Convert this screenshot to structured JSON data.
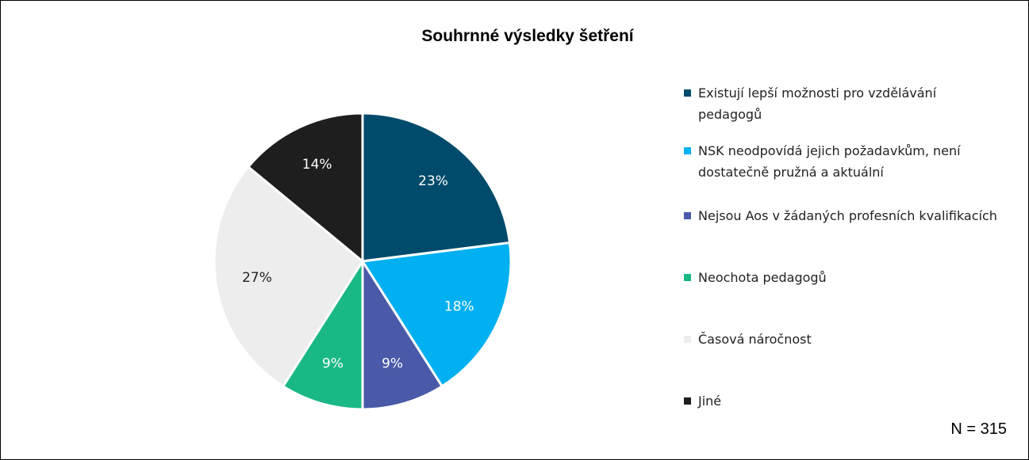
{
  "chart_data": {
    "type": "pie",
    "title": "Souhrnné výsledky šetření",
    "categories": [
      "Existují lepší možnosti pro vzdělávání pedagogů",
      "NSK neodpovídá jejich požadavkům, není dostatečně pružná a aktuální",
      "Nejsou Aos v žádaných profesních kvalifikacích",
      "Neochota pedagogů",
      "Časová náročnost",
      "Jiné"
    ],
    "values": [
      23,
      18,
      9,
      9,
      27,
      14
    ],
    "value_labels": [
      "23%",
      "18%",
      "9%",
      "9%",
      "27%",
      "14%"
    ],
    "colors": [
      "#004b6b",
      "#00b0f0",
      "#4a5aa8",
      "#19b886",
      "#ededed",
      "#1e1e1e"
    ],
    "legend": "right",
    "annotation": "N = 315"
  }
}
